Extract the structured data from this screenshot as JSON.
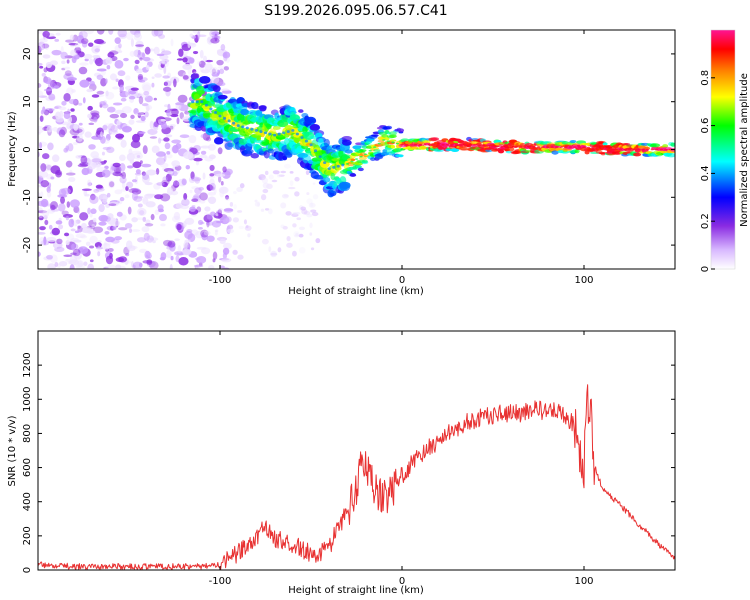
{
  "chart_data": [
    {
      "type": "heatmap",
      "title": "S199.2026.095.06.57.C41",
      "xlabel": "Height of straight line (km)",
      "ylabel": "Frequency (Hz)",
      "xlim": [
        -200,
        150
      ],
      "ylim": [
        -25,
        25
      ],
      "x_ticks": [
        -100,
        0,
        100
      ],
      "y_ticks": [
        -20,
        -10,
        0,
        10,
        20
      ],
      "colorbar": {
        "label": "Normalized spectral amplitude",
        "range": [
          0,
          1
        ],
        "ticks": [
          0.0,
          0.2,
          0.4,
          0.6,
          0.8
        ],
        "colors": [
          "#ffffff",
          "#d8b8ff",
          "#8a2be2",
          "#0000ff",
          "#00ffff",
          "#00ff00",
          "#ffff00",
          "#ff8000",
          "#ff0000",
          "#ff1493"
        ]
      },
      "signal_centerline": [
        {
          "height": -110,
          "frequency": 10
        },
        {
          "height": -100,
          "frequency": 7
        },
        {
          "height": -90,
          "frequency": 5
        },
        {
          "height": -80,
          "frequency": 4
        },
        {
          "height": -70,
          "frequency": 3
        },
        {
          "height": -60,
          "frequency": 4
        },
        {
          "height": -50,
          "frequency": 1
        },
        {
          "height": -40,
          "frequency": -4
        },
        {
          "height": -30,
          "frequency": -3
        },
        {
          "height": -20,
          "frequency": -1
        },
        {
          "height": -10,
          "frequency": 2
        },
        {
          "height": 0,
          "frequency": 1
        },
        {
          "height": 20,
          "frequency": 1
        },
        {
          "height": 40,
          "frequency": 1
        },
        {
          "height": 60,
          "frequency": 0.5
        },
        {
          "height": 80,
          "frequency": 0.5
        },
        {
          "height": 100,
          "frequency": 0.5
        },
        {
          "height": 120,
          "frequency": 0
        },
        {
          "height": 150,
          "frequency": 0
        }
      ]
    },
    {
      "type": "line",
      "xlabel": "Height of straight line (km)",
      "ylabel": "SNR (10 * v/v)",
      "xlim": [
        -200,
        150
      ],
      "ylim": [
        0,
        1400
      ],
      "x_ticks": [
        -100,
        0,
        100
      ],
      "y_ticks": [
        0,
        200,
        400,
        600,
        800,
        1000,
        1200
      ],
      "series": [
        {
          "name": "SNR",
          "color": "#e83232",
          "x": [
            -200,
            -180,
            -160,
            -140,
            -120,
            -110,
            -100,
            -95,
            -90,
            -85,
            -80,
            -75,
            -70,
            -65,
            -60,
            -55,
            -50,
            -45,
            -40,
            -35,
            -30,
            -25,
            -22,
            -20,
            -15,
            -10,
            -5,
            0,
            5,
            10,
            15,
            20,
            25,
            30,
            35,
            40,
            45,
            50,
            55,
            60,
            65,
            70,
            75,
            80,
            85,
            90,
            95,
            98,
            100,
            102,
            104,
            106,
            110,
            120,
            130,
            140,
            150
          ],
          "values": [
            30,
            20,
            20,
            20,
            20,
            20,
            30,
            60,
            100,
            150,
            200,
            250,
            180,
            170,
            150,
            120,
            100,
            100,
            130,
            250,
            350,
            450,
            700,
            620,
            480,
            420,
            480,
            550,
            620,
            680,
            720,
            760,
            800,
            830,
            860,
            880,
            900,
            910,
            920,
            920,
            920,
            930,
            940,
            930,
            930,
            900,
            850,
            700,
            600,
            1000,
            900,
            600,
            480,
            380,
            270,
            160,
            60
          ]
        }
      ]
    }
  ]
}
